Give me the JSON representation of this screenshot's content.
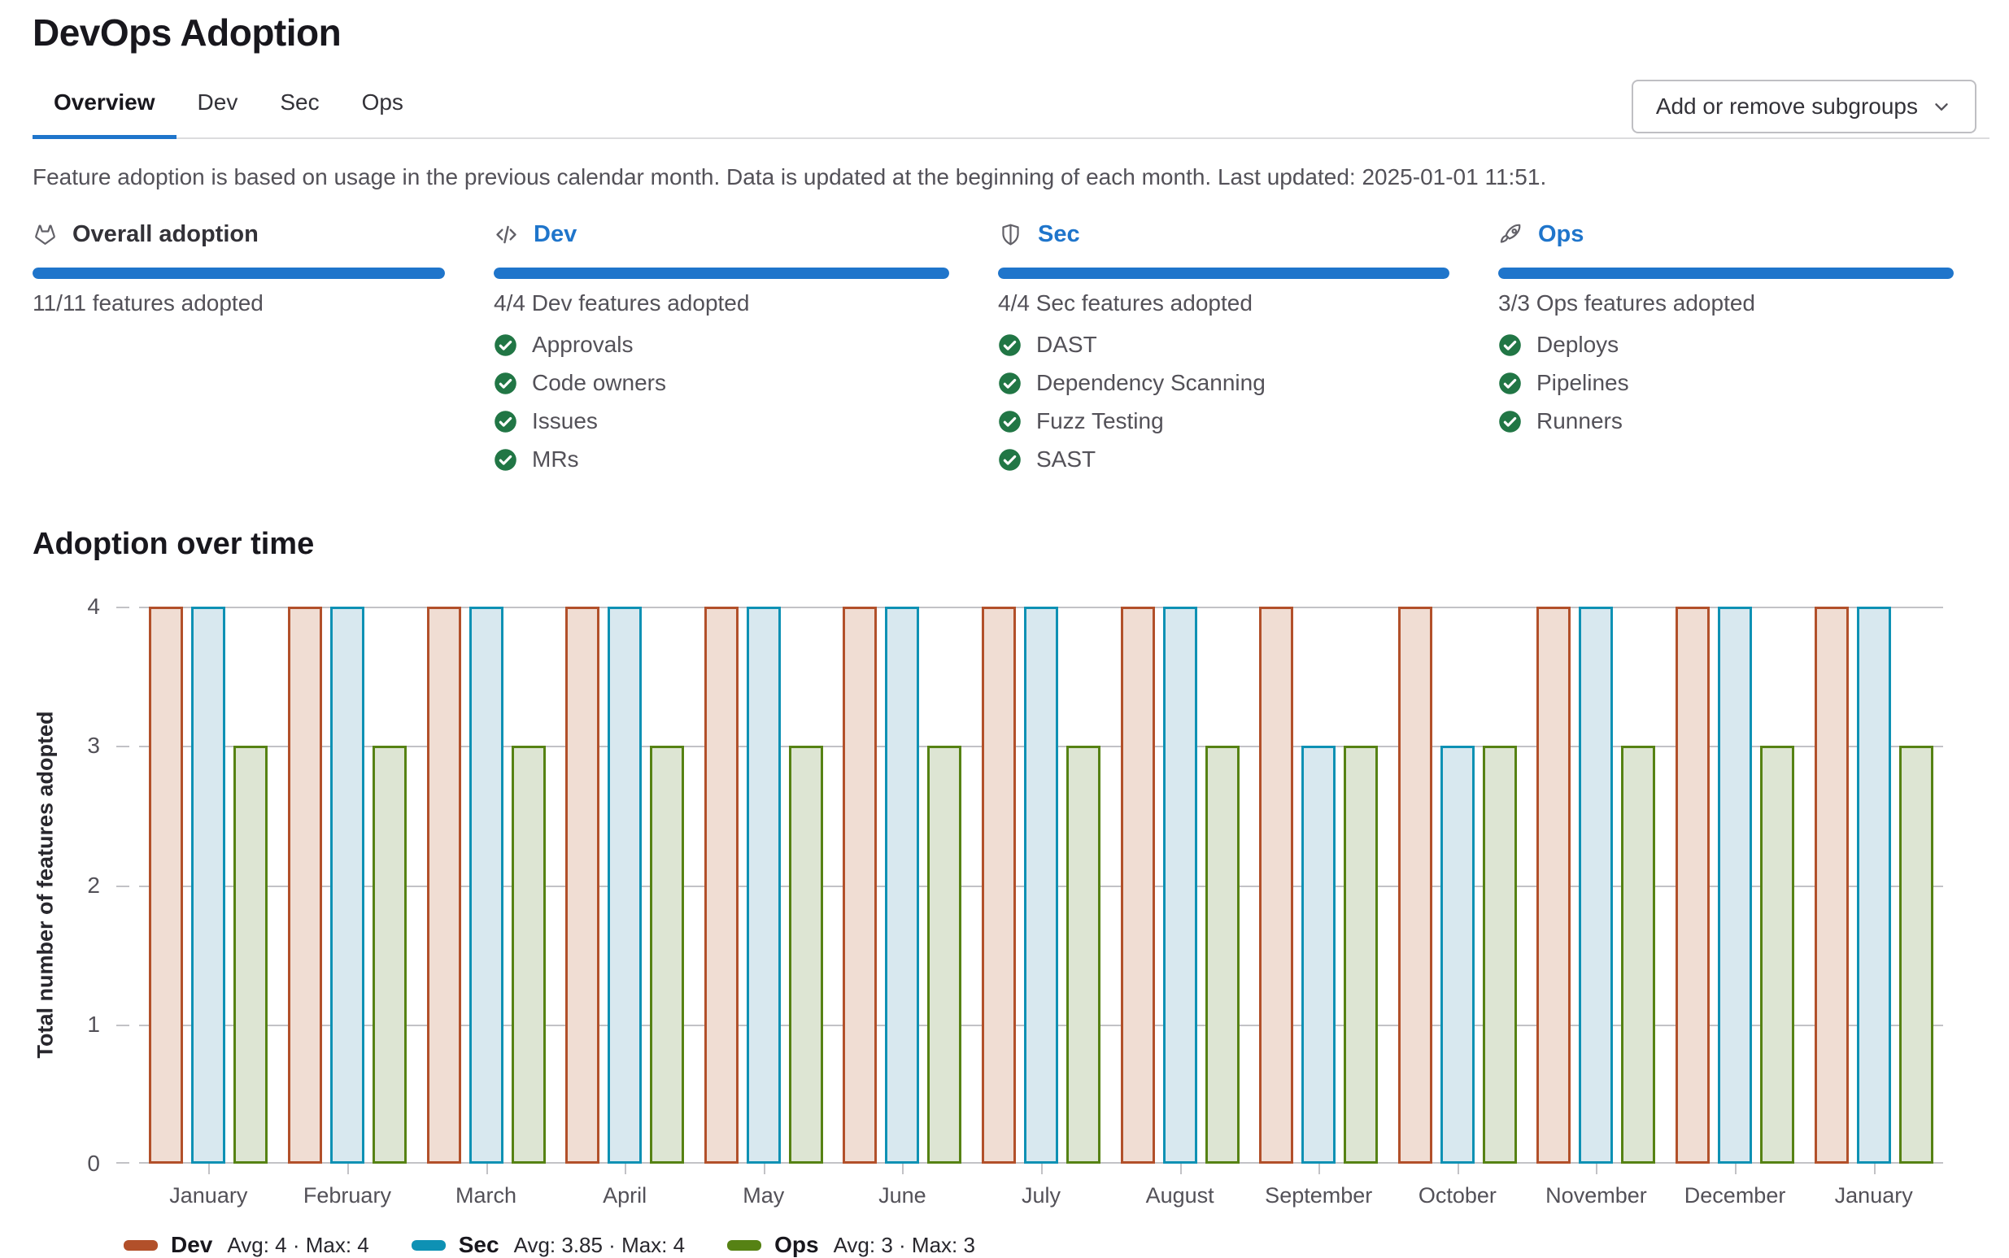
{
  "page": {
    "title": "DevOps Adoption",
    "tabs": [
      {
        "label": "Overview",
        "active": true
      },
      {
        "label": "Dev",
        "active": false
      },
      {
        "label": "Sec",
        "active": false
      },
      {
        "label": "Ops",
        "active": false
      }
    ],
    "subgroups_button_label": "Add or remove subgroups",
    "info_text": "Feature adoption is based on usage in the previous calendar month. Data is updated at the beginning of each month. Last updated: 2025-01-01 11:51."
  },
  "adoption_cards": [
    {
      "title": "Overall adoption",
      "icon": "tanuki-icon",
      "is_link": false,
      "progress_percent": 100,
      "summary": "11/11 features adopted",
      "features": []
    },
    {
      "title": "Dev",
      "icon": "code-icon",
      "is_link": true,
      "progress_percent": 100,
      "summary": "4/4 Dev features adopted",
      "features": [
        "Approvals",
        "Code owners",
        "Issues",
        "MRs"
      ]
    },
    {
      "title": "Sec",
      "icon": "shield-icon",
      "is_link": true,
      "progress_percent": 100,
      "summary": "4/4 Sec features adopted",
      "features": [
        "DAST",
        "Dependency Scanning",
        "Fuzz Testing",
        "SAST"
      ]
    },
    {
      "title": "Ops",
      "icon": "rocket-icon",
      "is_link": true,
      "progress_percent": 100,
      "summary": "3/3 Ops features adopted",
      "features": [
        "Deploys",
        "Pipelines",
        "Runners"
      ]
    }
  ],
  "chart_data": {
    "type": "bar",
    "title": "Adoption over time",
    "ylabel": "Total number of features adopted",
    "categories": [
      "January",
      "February",
      "March",
      "April",
      "May",
      "June",
      "July",
      "August",
      "September",
      "October",
      "November",
      "December",
      "January"
    ],
    "series": [
      {
        "name": "Dev",
        "values": [
          4,
          4,
          4,
          4,
          4,
          4,
          4,
          4,
          4,
          4,
          4,
          4,
          4
        ],
        "stats": "Avg: 4 · Max: 4",
        "border_color": "#b2502a",
        "fill_color": "#f0ddd3"
      },
      {
        "name": "Sec",
        "values": [
          4,
          4,
          4,
          4,
          4,
          4,
          4,
          4,
          3,
          3,
          4,
          4,
          4
        ],
        "stats": "Avg: 3.85 · Max: 4",
        "border_color": "#0e91b4",
        "fill_color": "#d8e8ef"
      },
      {
        "name": "Ops",
        "values": [
          3,
          3,
          3,
          3,
          3,
          3,
          3,
          3,
          3,
          3,
          3,
          3,
          3
        ],
        "stats": "Avg: 3 · Max: 3",
        "border_color": "#568214",
        "fill_color": "#dde5d3"
      }
    ],
    "ylim": [
      0,
      4
    ],
    "yticks": [
      0,
      1,
      2,
      3,
      4
    ],
    "grid": true,
    "legend_position": "bottom"
  },
  "colors": {
    "accent_blue": "#1f75cb",
    "check_green": "#217645",
    "text_dark": "#18171d",
    "text_gray": "#535158",
    "gridline": "#c2c2c6",
    "divider": "#dcdcde"
  }
}
